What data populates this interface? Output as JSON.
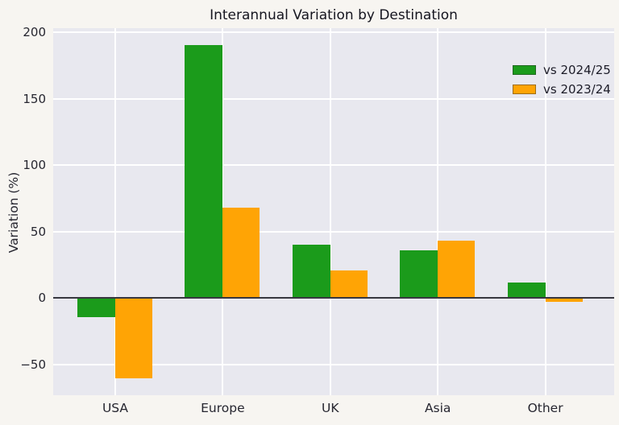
{
  "figure": {
    "title": "Interannual Variation by Destination",
    "ylabel": "Variation (%)"
  },
  "chart_data": {
    "type": "bar",
    "title": "Interannual Variation by Destination",
    "xlabel": "",
    "ylabel": "Variation (%)",
    "categories": [
      "USA",
      "Europe",
      "UK",
      "Asia",
      "Other"
    ],
    "series": [
      {
        "name": "vs 2024/25",
        "color": "#1b9b1b",
        "values": [
          -14,
          190,
          40,
          36,
          12
        ]
      },
      {
        "name": "vs 2023/24",
        "color": "#ffa405",
        "values": [
          -60,
          68,
          21,
          43,
          -3
        ]
      }
    ],
    "ylim": [
      -73,
      203
    ],
    "yticks": [
      200,
      150,
      100,
      50,
      0,
      -50
    ],
    "grid": true,
    "grid_color": "#ffffff",
    "plot_background": "#e8e8ef",
    "figure_background": "#f7f5f1",
    "zero_line": true,
    "zero_line_color": "#37373f",
    "legend_position": "upper right"
  }
}
